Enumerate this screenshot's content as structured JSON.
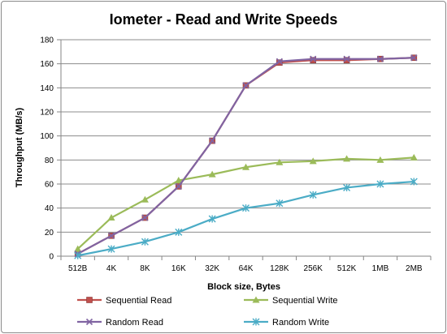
{
  "chart_data": {
    "type": "line",
    "title": "Iometer - Read and Write Speeds",
    "xlabel": "Block size, Bytes",
    "ylabel": "Throughput (MB/s)",
    "categories": [
      "512B",
      "4K",
      "8K",
      "16K",
      "32K",
      "64K",
      "128K",
      "256K",
      "512K",
      "1MB",
      "2MB"
    ],
    "ylim": [
      0,
      180
    ],
    "yticks": [
      0,
      20,
      40,
      60,
      80,
      100,
      120,
      140,
      160,
      180
    ],
    "grid": "horizontal",
    "legend_position": "bottom",
    "series": [
      {
        "name": "Sequential Read",
        "color": "#c0504d",
        "marker": "square",
        "values": [
          2,
          17,
          32,
          58,
          96,
          142,
          161,
          163,
          163,
          164,
          165
        ]
      },
      {
        "name": "Sequential Write",
        "color": "#9bbb59",
        "marker": "triangle",
        "values": [
          6,
          32,
          47,
          63,
          68,
          74,
          78,
          79,
          81,
          80,
          82
        ]
      },
      {
        "name": "Random Read",
        "color": "#8064a2",
        "marker": "x",
        "values": [
          2,
          17,
          32,
          58,
          96,
          142,
          162,
          164,
          164,
          164,
          165
        ]
      },
      {
        "name": "Random Write",
        "color": "#4bacc6",
        "marker": "star",
        "values": [
          0.5,
          6,
          12,
          20,
          31,
          40,
          44,
          51,
          57,
          60,
          62
        ]
      }
    ]
  }
}
